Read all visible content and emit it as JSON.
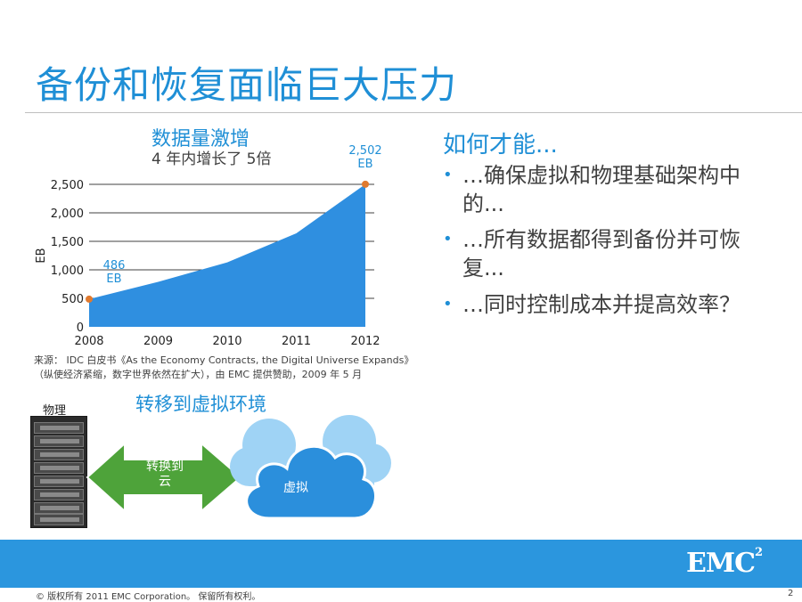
{
  "slide": {
    "title": "备份和恢复面临巨大压力",
    "chart_heading": "数据量激增",
    "chart_subheading": "4 年内增长了 5倍",
    "source_line1": "来源：  IDC 白皮书《As the Economy Contracts, the Digital Universe Expands》",
    "source_line2": "（纵使经济紧缩，数字世界依然在扩大），由 EMC 提供赞助，2009 年 5 月",
    "right_heading": "如何才能...",
    "bullets": [
      "…确保虚拟和物理基础架构中的...",
      "…所有数据都得到备份并可恢复...",
      "…同时控制成本并提高效率？"
    ],
    "migration_title": "转移到虚拟环境",
    "physical_label": "物理",
    "arrow_label_line1": "转换到",
    "arrow_label_line2": "云",
    "cloud_label": "虚拟",
    "logo_text": "EMC",
    "logo_sup": "2",
    "copyright": "© 版权所有 2011 EMC Corporation。 保留所有权利。",
    "page_number": "2"
  },
  "colors": {
    "accent": "#1f8fd6",
    "area_fill": "#2f8fe0",
    "marker": "#e07a2f",
    "arrow_green": "#4ea33a",
    "cloud_light": "#9fd3f5",
    "cloud_dark": "#2b8fdc",
    "footer": "#2b96de"
  },
  "chart_data": {
    "type": "area",
    "x": [
      2008,
      2009,
      2010,
      2011,
      2012
    ],
    "values": [
      486,
      790,
      1130,
      1640,
      2502
    ],
    "ylabel": "EB",
    "ylim": [
      0,
      2500
    ],
    "yticks": [
      "0",
      "500",
      "1,000",
      "1,500",
      "2,000",
      "2,500"
    ],
    "xticks": [
      "2008",
      "2009",
      "2010",
      "2011",
      "2012"
    ],
    "grid": true,
    "annotations": [
      {
        "value": "486",
        "unit": "EB"
      },
      {
        "value": "2,502",
        "unit": "EB"
      }
    ]
  },
  "icons": {
    "server_rack": "server-rack-icon",
    "arrow": "double-arrow-icon",
    "cloud": "cloud-icon"
  }
}
